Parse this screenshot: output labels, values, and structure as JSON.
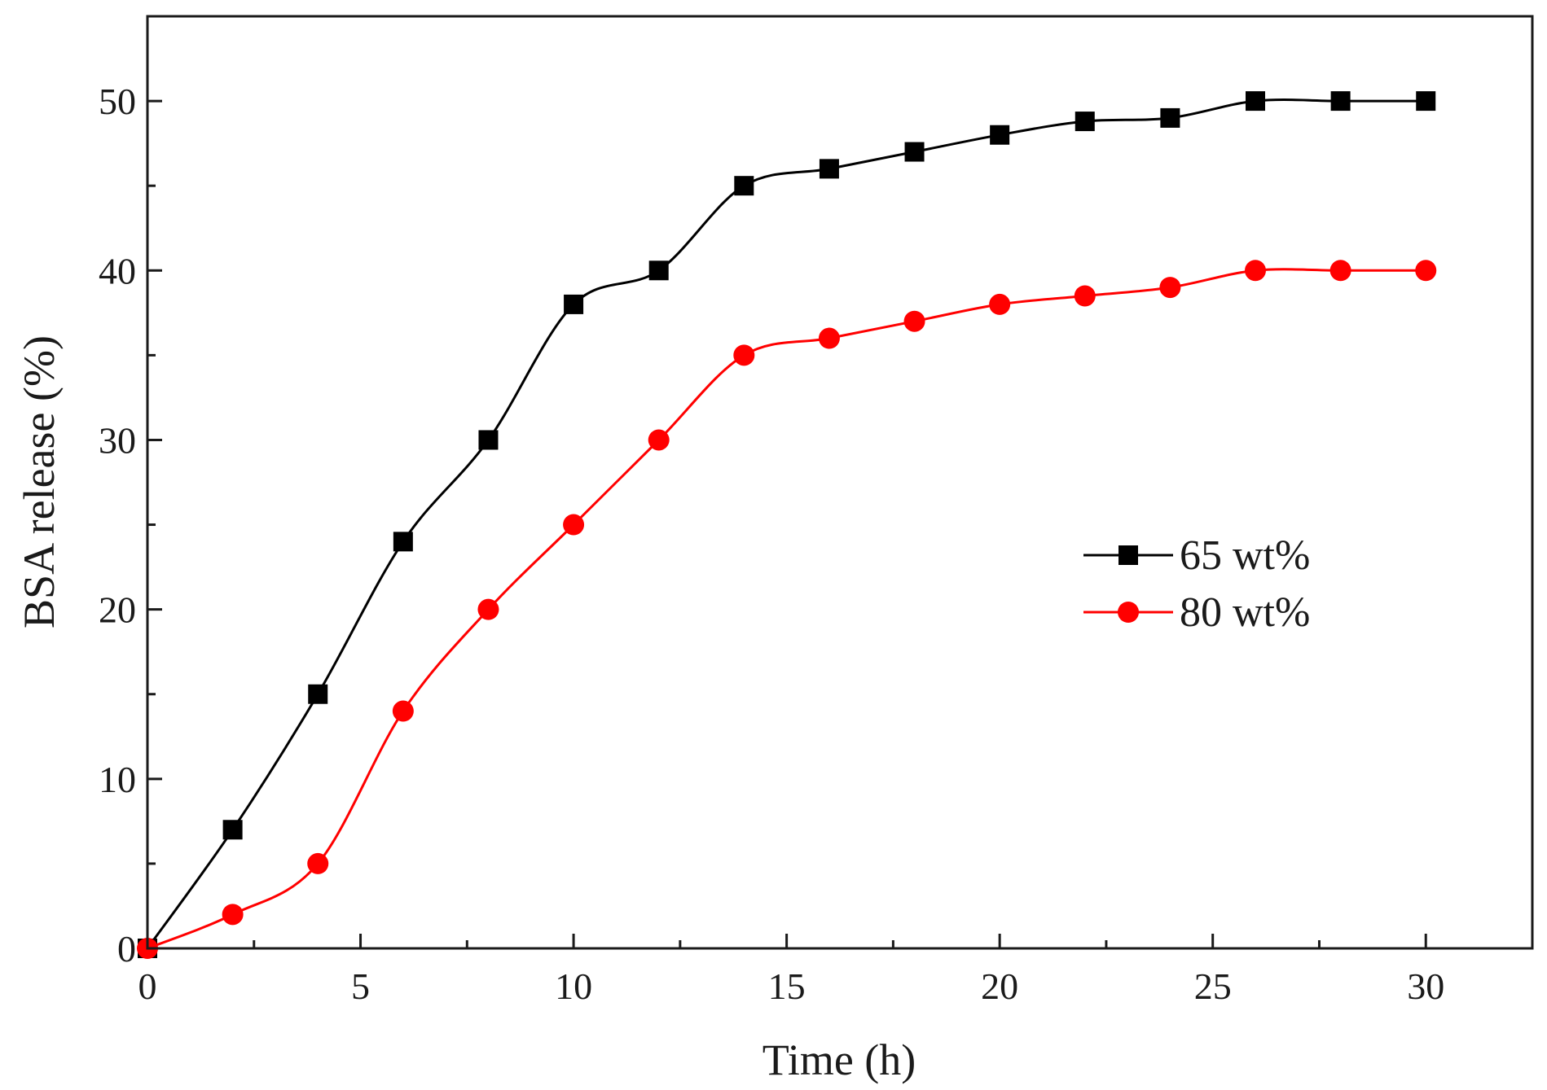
{
  "chart_data": {
    "type": "line",
    "title": "",
    "xlabel": "Time (h)",
    "ylabel": "BSA release (%)",
    "xlim": [
      0,
      32.5
    ],
    "ylim": [
      0,
      55
    ],
    "xticks": [
      0,
      5,
      10,
      15,
      20,
      25,
      30
    ],
    "yticks": [
      0,
      10,
      20,
      30,
      40,
      50
    ],
    "xtick_labels": [
      "0",
      "5",
      "10",
      "15",
      "20",
      "25",
      "30"
    ],
    "ytick_labels": [
      "0",
      "10",
      "20",
      "30",
      "40",
      "50"
    ],
    "grid": false,
    "legend_position": "center-right",
    "series": [
      {
        "name": "65 wt%",
        "color": "#000000",
        "marker": "square",
        "x": [
          0,
          2,
          4,
          6,
          8,
          10,
          12,
          14,
          16,
          18,
          20,
          22,
          24,
          26,
          28,
          30
        ],
        "values": [
          0,
          7,
          15,
          24,
          30,
          38,
          40,
          45,
          46,
          47,
          48,
          48.8,
          49,
          50,
          50,
          50
        ]
      },
      {
        "name": "80 wt%",
        "color": "#ff0000",
        "marker": "circle",
        "x": [
          0,
          2,
          4,
          6,
          8,
          10,
          12,
          14,
          16,
          18,
          20,
          22,
          24,
          26,
          28,
          30
        ],
        "values": [
          0,
          2,
          5,
          14,
          20,
          25,
          30,
          35,
          36,
          37,
          38,
          38.5,
          39,
          40,
          40,
          40
        ]
      }
    ]
  }
}
